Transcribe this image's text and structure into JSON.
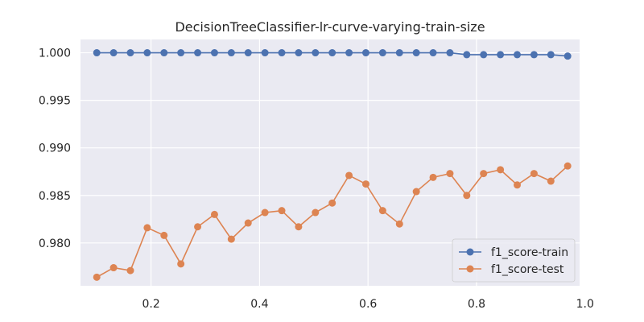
{
  "chart_data": {
    "type": "line",
    "title": "DecisionTreeClassifier-lr-curve-varying-train-size",
    "xlabel": "",
    "ylabel": "",
    "xlim": [
      0.07,
      0.99
    ],
    "ylim": [
      0.9755,
      1.0014
    ],
    "xticks": [
      0.2,
      0.4,
      0.6,
      0.8,
      1.0
    ],
    "xtick_labels": [
      "0.2",
      "0.4",
      "0.6",
      "0.8",
      "1.0"
    ],
    "yticks": [
      0.98,
      0.985,
      0.99,
      0.995,
      1.0
    ],
    "ytick_labels": [
      "0.980",
      "0.985",
      "0.990",
      "0.995",
      "1.000"
    ],
    "grid": true,
    "legend_position": "lower-right",
    "x": [
      0.1,
      0.131,
      0.162,
      0.193,
      0.224,
      0.255,
      0.286,
      0.317,
      0.348,
      0.379,
      0.41,
      0.441,
      0.472,
      0.503,
      0.534,
      0.565,
      0.596,
      0.627,
      0.658,
      0.689,
      0.72,
      0.751,
      0.782,
      0.813,
      0.844,
      0.875,
      0.906,
      0.937,
      0.968
    ],
    "series": [
      {
        "name": "f1_score-train",
        "color": "#4c72b0",
        "values": [
          1.0,
          1.0,
          1.0,
          1.0,
          1.0,
          1.0,
          1.0,
          1.0,
          1.0,
          1.0,
          1.0,
          1.0,
          1.0,
          1.0,
          1.0,
          1.0,
          1.0,
          1.0,
          1.0,
          1.0,
          1.0,
          1.0,
          0.9998,
          0.9998,
          0.9998,
          0.9998,
          0.9998,
          0.9998,
          0.99965
        ]
      },
      {
        "name": "f1_score-test",
        "color": "#dd8452",
        "values": [
          0.9764,
          0.9774,
          0.9771,
          0.9816,
          0.9808,
          0.9778,
          0.9817,
          0.983,
          0.9804,
          0.9821,
          0.9832,
          0.9834,
          0.9817,
          0.9832,
          0.9842,
          0.9871,
          0.9862,
          0.9834,
          0.982,
          0.9854,
          0.9869,
          0.9873,
          0.985,
          0.9873,
          0.9877,
          0.9861,
          0.9873,
          0.9865,
          0.9881
        ]
      }
    ]
  }
}
